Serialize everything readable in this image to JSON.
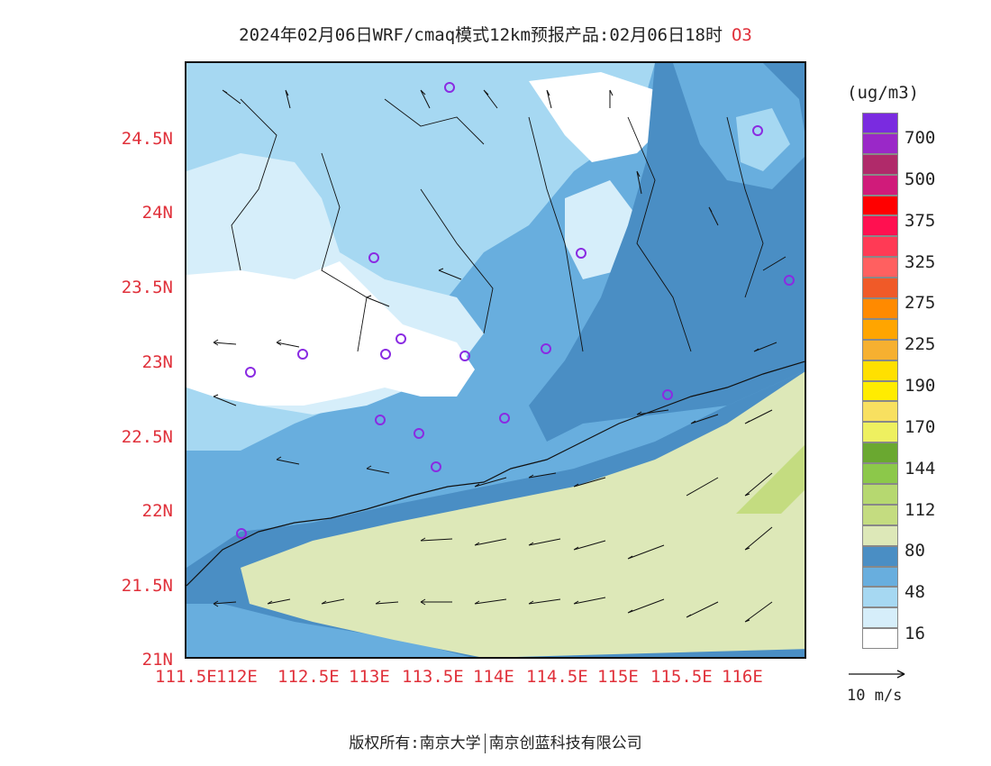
{
  "title": {
    "text": "2024年02月06日WRF/cmaq模式12km预报产品:02月06日18时",
    "pollutant": "O3"
  },
  "axes": {
    "y_ticks": [
      "24.5N",
      "24N",
      "23.5N",
      "23N",
      "22.5N",
      "22N",
      "21.5N",
      "21N"
    ],
    "x_ticks": [
      "111.5E",
      "112E",
      "112.5E",
      "113E",
      "113.5E",
      "114E",
      "114.5E",
      "115E",
      "115.5E",
      "116E"
    ]
  },
  "colorbar": {
    "unit": "(ug/m3)",
    "levels": [
      "700",
      "500",
      "375",
      "325",
      "275",
      "225",
      "190",
      "170",
      "144",
      "112",
      "80",
      "48",
      "16"
    ],
    "colors": [
      "#7a2be0",
      "#9a28c8",
      "#b02a6a",
      "#d01b7a",
      "#ff0000",
      "#ff1050",
      "#ff3a55",
      "#ff6060",
      "#f05a28",
      "#ff8a00",
      "#ffa500",
      "#f6b030",
      "#ffe000",
      "#ffec00",
      "#f8e060",
      "#eef060",
      "#6aa830",
      "#8cc84a",
      "#b6d870",
      "#c4dc80",
      "#dde8b8",
      "#4a8ec4",
      "#68aede",
      "#a6d8f2",
      "#d6eefa",
      "#ffffff"
    ]
  },
  "vector_scale": {
    "label": "10 m/s"
  },
  "footer": {
    "left": "版权所有:南京大学",
    "right": "南京创蓝科技有限公司"
  }
}
